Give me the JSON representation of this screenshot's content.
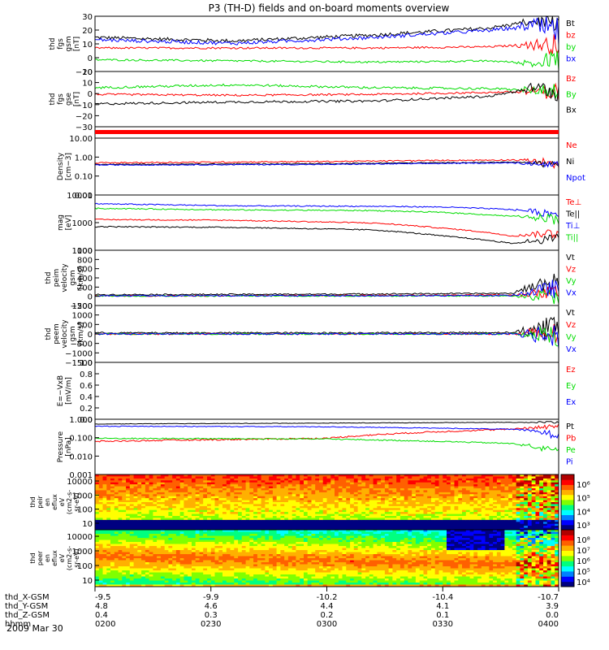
{
  "chart_data": {
    "title": "P3 (TH-D) fields and on-board moments overview",
    "type": "multi-panel time series",
    "date_label": "2009 Mar 30",
    "x_axis": {
      "row_labels": [
        "thd_X-GSM",
        "thd_Y-GSM",
        "thd_Z-GSM",
        "hhmm"
      ],
      "ticks": [
        {
          "X": "-9.5",
          "Y": "4.8",
          "Z": "0.4",
          "hhmm": "0200"
        },
        {
          "X": "-9.9",
          "Y": "4.6",
          "Z": "0.3",
          "hhmm": "0230"
        },
        {
          "X": "-10.2",
          "Y": "4.4",
          "Z": "0.2",
          "hhmm": "0300"
        },
        {
          "X": "-10.4",
          "Y": "4.1",
          "Z": "0.1",
          "hhmm": "0330"
        },
        {
          "X": "-10.7",
          "Y": "3.9",
          "Z": "0.0",
          "hhmm": "0400"
        }
      ]
    },
    "panels": [
      {
        "id": "fgs-gsm",
        "ylabel": [
          "thd",
          "fgs",
          "gsm",
          "[nT]"
        ],
        "ylim": [
          -15,
          32
        ],
        "yticks": [
          "30",
          "20",
          "10",
          "0",
          "−10"
        ],
        "series": [
          {
            "name": "Bt",
            "color": "#000000",
            "x": [
              0,
              0.3,
              0.6,
              0.85,
              0.95,
              1.0
            ],
            "y": [
              14,
              11,
              16,
              22,
              28,
              25
            ],
            "noise": 1.5,
            "burst": 8
          },
          {
            "name": "bz",
            "color": "#ff0000",
            "x": [
              0,
              0.3,
              0.6,
              0.85,
              0.95,
              1.0
            ],
            "y": [
              5,
              5,
              5,
              6,
              8,
              8
            ],
            "noise": 0.8,
            "burst": 10
          },
          {
            "name": "by",
            "color": "#00dd00",
            "x": [
              0,
              0.3,
              0.6,
              0.85,
              0.95,
              1.0
            ],
            "y": [
              -5,
              -6,
              -7,
              -6,
              -8,
              -5
            ],
            "noise": 0.8,
            "burst": 10
          },
          {
            "name": "bx",
            "color": "#0000ff",
            "x": [
              0,
              0.3,
              0.6,
              0.85,
              0.95,
              1.0
            ],
            "y": [
              12,
              9,
              14,
              20,
              24,
              18
            ],
            "noise": 1.5,
            "burst": 14
          }
        ]
      },
      {
        "id": "fgs-gse",
        "ylabel": [
          "thd",
          "fgs",
          "gse",
          "[nT]"
        ],
        "ylim": [
          -36,
          22
        ],
        "yticks": [
          "20",
          "10",
          "0",
          "−10",
          "−20",
          "−30"
        ],
        "series": [
          {
            "name": "Bz",
            "color": "#ff0000",
            "x": [
              0,
              0.3,
              0.6,
              0.85,
              0.95,
              1.0
            ],
            "y": [
              -2,
              -3,
              -2,
              0,
              1,
              0
            ],
            "noise": 1,
            "burst": 10
          },
          {
            "name": "By",
            "color": "#00dd00",
            "x": [
              0,
              0.3,
              0.6,
              0.85,
              0.95,
              1.0
            ],
            "y": [
              5,
              8,
              5,
              4,
              2,
              3
            ],
            "noise": 1.2,
            "burst": 10
          },
          {
            "name": "Bx",
            "color": "#000000",
            "x": [
              0,
              0.3,
              0.6,
              0.85,
              0.95,
              1.0
            ],
            "y": [
              -12,
              -10,
              -9,
              -4,
              5,
              0
            ],
            "noise": 1.2,
            "burst": 12
          }
        ]
      },
      {
        "id": "density",
        "ylabel": [
          "Density",
          "[cm−3]"
        ],
        "log": true,
        "ylim": [
          0.01,
          12
        ],
        "yticks": [
          "10.00",
          "1.00",
          "0.10",
          "0.01"
        ],
        "series": [
          {
            "name": "Ne",
            "color": "#ff0000",
            "x": [
              0,
              0.5,
              0.9,
              1.0
            ],
            "y": [
              0.55,
              0.65,
              0.8,
              0.6
            ],
            "noise": 0.08,
            "burst": 0.6
          },
          {
            "name": "Ni",
            "color": "#000000",
            "x": [
              0,
              0.5,
              0.9,
              1.0
            ],
            "y": [
              0.45,
              0.5,
              0.6,
              0.5
            ],
            "noise": 0.06,
            "burst": 0.5
          },
          {
            "name": "Npot",
            "color": "#0000ff",
            "x": [
              0,
              0.5,
              0.9,
              1.0
            ],
            "y": [
              0.42,
              0.45,
              0.55,
              0.45
            ],
            "noise": 0.06,
            "burst": 0.5
          }
        ]
      },
      {
        "id": "temperature",
        "ylabel": [
          "mag",
          "[eV]"
        ],
        "log": true,
        "ylim": [
          100,
          13000
        ],
        "yticks": [
          "10000",
          "1000",
          "100"
        ],
        "series": [
          {
            "name": "Te⊥",
            "color": "#ff0000",
            "x": [
              0,
              0.3,
              0.6,
              0.75,
              0.9,
              1.0
            ],
            "y": [
              1500,
              1400,
              1100,
              700,
              350,
              500
            ],
            "noise": 0.05,
            "burst": 0.5
          },
          {
            "name": "Te||",
            "color": "#000000",
            "x": [
              0,
              0.3,
              0.6,
              0.75,
              0.9,
              1.0
            ],
            "y": [
              800,
              750,
              600,
              350,
              180,
              300
            ],
            "noise": 0.05,
            "burst": 0.5
          },
          {
            "name": "Ti⊥",
            "color": "#0000ff",
            "x": [
              0,
              0.3,
              0.6,
              0.75,
              0.9,
              1.0
            ],
            "y": [
              6000,
              5000,
              4800,
              4500,
              3600,
              2500
            ],
            "noise": 0.05,
            "burst": 0.5
          },
          {
            "name": "Ti||",
            "color": "#00dd00",
            "x": [
              0,
              0.3,
              0.6,
              0.75,
              0.9,
              1.0
            ],
            "y": [
              4000,
              3500,
              3300,
              2800,
              2000,
              1800
            ],
            "noise": 0.05,
            "burst": 0.5
          }
        ]
      },
      {
        "id": "peim-velocity",
        "ylabel": [
          "thd",
          "peim",
          "velocity",
          "gsm",
          "[km/s]"
        ],
        "ylim": [
          -220,
          1050
        ],
        "yticks": [
          "1000",
          "800",
          "600",
          "400",
          "200",
          "0",
          "−200"
        ],
        "series": [
          {
            "name": "Vt",
            "color": "#000000",
            "x": [
              0,
              0.5,
              0.9,
              1.0
            ],
            "y": [
              30,
              40,
              60,
              400
            ],
            "noise": 15,
            "burst": 300
          },
          {
            "name": "Vz",
            "color": "#ff0000",
            "x": [
              0,
              0.5,
              0.9,
              1.0
            ],
            "y": [
              0,
              10,
              20,
              100
            ],
            "noise": 15,
            "burst": 200
          },
          {
            "name": "Vy",
            "color": "#00dd00",
            "x": [
              0,
              0.5,
              0.9,
              1.0
            ],
            "y": [
              0,
              0,
              0,
              0
            ],
            "noise": 15,
            "burst": 200
          },
          {
            "name": "Vx",
            "color": "#0000ff",
            "x": [
              0,
              0.5,
              0.9,
              1.0
            ],
            "y": [
              5,
              5,
              10,
              200
            ],
            "noise": 15,
            "burst": 250
          }
        ]
      },
      {
        "id": "peem-velocity",
        "ylabel": [
          "thd",
          "peem",
          "velocity",
          "gsm",
          "[km/s]"
        ],
        "ylim": [
          -1550,
          1550
        ],
        "yticks": [
          "1500",
          "1000",
          "500",
          "0",
          "−500",
          "−1000",
          "−1500"
        ],
        "series": [
          {
            "name": "Vt",
            "color": "#000000",
            "x": [
              0,
              0.5,
              0.9,
              1.0
            ],
            "y": [
              60,
              60,
              80,
              400
            ],
            "noise": 40,
            "burst": 1000
          },
          {
            "name": "Vz",
            "color": "#ff0000",
            "x": [
              0,
              0.5,
              0.9,
              1.0
            ],
            "y": [
              0,
              0,
              0,
              0
            ],
            "noise": 40,
            "burst": 700
          },
          {
            "name": "Vy",
            "color": "#00dd00",
            "x": [
              0,
              0.5,
              0.9,
              1.0
            ],
            "y": [
              0,
              0,
              0,
              0
            ],
            "noise": 40,
            "burst": 700
          },
          {
            "name": "Vx",
            "color": "#0000ff",
            "x": [
              0,
              0.5,
              0.9,
              1.0
            ],
            "y": [
              0,
              0,
              0,
              0
            ],
            "noise": 40,
            "burst": 900
          }
        ]
      },
      {
        "id": "efield",
        "ylabel": [
          "E=−VxB",
          "[mV/m]"
        ],
        "ylim": [
          0,
          1.0
        ],
        "yticks": [
          "1.0",
          "0.8",
          "0.6",
          "0.4",
          "0.2",
          "0.0"
        ],
        "series": [
          {
            "name": "Ez",
            "color": "#ff0000",
            "x": [],
            "y": []
          },
          {
            "name": "Ey",
            "color": "#00dd00",
            "x": [],
            "y": []
          },
          {
            "name": "Ex",
            "color": "#0000ff",
            "x": [],
            "y": []
          }
        ]
      },
      {
        "id": "pressure",
        "ylabel": [
          "Pressure",
          "[nPa]"
        ],
        "log": true,
        "ylim": [
          0.001,
          1.5
        ],
        "yticks": [
          "1.000",
          "0.100",
          "0.010",
          "0.001"
        ],
        "series": [
          {
            "name": "Pt",
            "color": "#000000",
            "x": [
              0,
              0.5,
              0.9,
              1.0
            ],
            "y": [
              0.8,
              0.9,
              1.0,
              1.0
            ],
            "noise": 0.03,
            "burst": 0.2
          },
          {
            "name": "Pb",
            "color": "#ff0000",
            "x": [
              0,
              0.5,
              0.9,
              1.0
            ],
            "y": [
              0.08,
              0.12,
              0.4,
              0.6
            ],
            "noise": 0.1,
            "burst": 0.4
          },
          {
            "name": "Pe",
            "color": "#00dd00",
            "x": [
              0,
              0.5,
              0.9,
              1.0
            ],
            "y": [
              0.12,
              0.11,
              0.06,
              0.02
            ],
            "noise": 0.08,
            "burst": 0.6
          },
          {
            "name": "Pi",
            "color": "#0000ff",
            "x": [
              0,
              0.5,
              0.9,
              1.0
            ],
            "y": [
              0.6,
              0.55,
              0.4,
              0.2
            ],
            "noise": 0.05,
            "burst": 0.5
          }
        ]
      }
    ],
    "spectrograms": [
      {
        "id": "peir-eflux",
        "ylabel": [
          "thd",
          "peir",
          "en",
          "eflux",
          "eV",
          "(cm2-s-",
          "sr-eV)"
        ],
        "ylim": [
          5,
          20000
        ],
        "yticks": [
          "10000",
          "1000",
          "100",
          "10"
        ],
        "colorbar_ticks": [
          "10⁶",
          "10⁵",
          "10⁴",
          "10³"
        ]
      },
      {
        "id": "peer-eflux",
        "ylabel": [
          "thd",
          "peer",
          "en",
          "eflux",
          "eV",
          "(cm2-s-",
          "sr-eV)"
        ],
        "ylim": [
          8,
          20000
        ],
        "yticks": [
          "10000",
          "1000",
          "100",
          "10"
        ],
        "colorbar_ticks": [
          "10⁸",
          "10⁷",
          "10⁶",
          "10⁵",
          "10⁴"
        ]
      }
    ]
  }
}
